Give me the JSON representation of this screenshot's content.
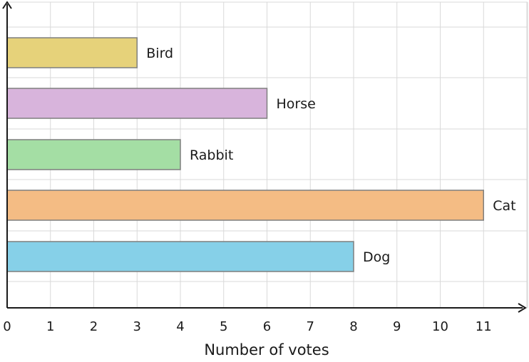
{
  "chart_data": {
    "type": "bar",
    "orientation": "horizontal",
    "categories": [
      "Bird",
      "Horse",
      "Rabbit",
      "Cat",
      "Dog"
    ],
    "values": [
      3,
      6,
      4,
      11,
      8
    ],
    "xlabel": "Number of votes",
    "ylabel": "",
    "xlim": [
      0,
      12
    ],
    "xticks": [
      "0",
      "1",
      "2",
      "3",
      "4",
      "5",
      "6",
      "7",
      "8",
      "9",
      "10",
      "11"
    ],
    "grid": true,
    "colors": [
      "#e6d27a",
      "#d8b4dc",
      "#a4dea4",
      "#f4bc84",
      "#86d0e8"
    ],
    "edge_color": "#7f7f7f",
    "grid_color": "#d9d9d9",
    "axis_color": "#1a1a1a"
  }
}
